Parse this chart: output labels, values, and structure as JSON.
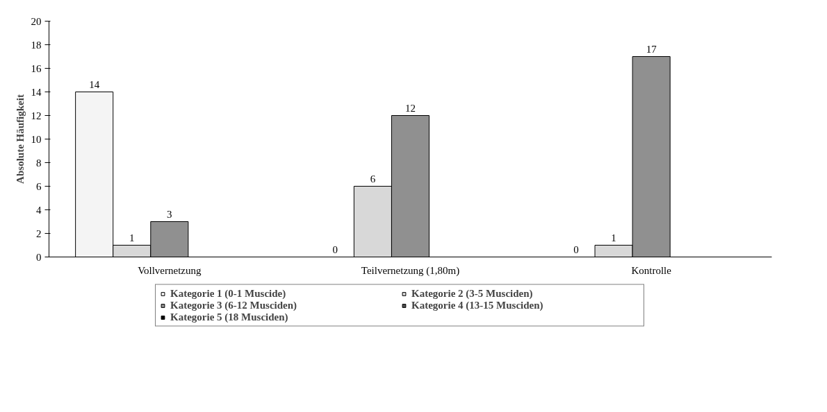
{
  "chart_data": {
    "type": "bar",
    "categories": [
      "Vollvernetzung",
      "Teilvernetzung (1,80m)",
      "Kontrolle"
    ],
    "ylabel": "Absolute Häufigkeit",
    "ylim": [
      0,
      20
    ],
    "yticks": [
      0,
      2,
      4,
      6,
      8,
      10,
      12,
      14,
      16,
      18,
      20
    ],
    "grid": false,
    "legend": "bottom",
    "data_labels": true,
    "series": [
      {
        "name": "Kategorie 1 (0-1 Muscide)",
        "color": "#f4f4f4",
        "values": [
          14,
          0,
          0
        ]
      },
      {
        "name": "Kategorie 2 (3-5 Musciden)",
        "color": "#d8d8d8",
        "values": [
          1,
          6,
          1
        ]
      },
      {
        "name": "Kategorie 3 (6-12 Musciden)",
        "color": "#909090",
        "values": [
          3,
          12,
          17
        ]
      },
      {
        "name": "Kategorie 4 (13-15 Musciden)",
        "color": "#505050",
        "values": [
          null,
          null,
          null
        ]
      },
      {
        "name": "Kategorie 5 (18 Musciden)",
        "color": "#000000",
        "values": [
          null,
          null,
          null
        ]
      }
    ]
  }
}
